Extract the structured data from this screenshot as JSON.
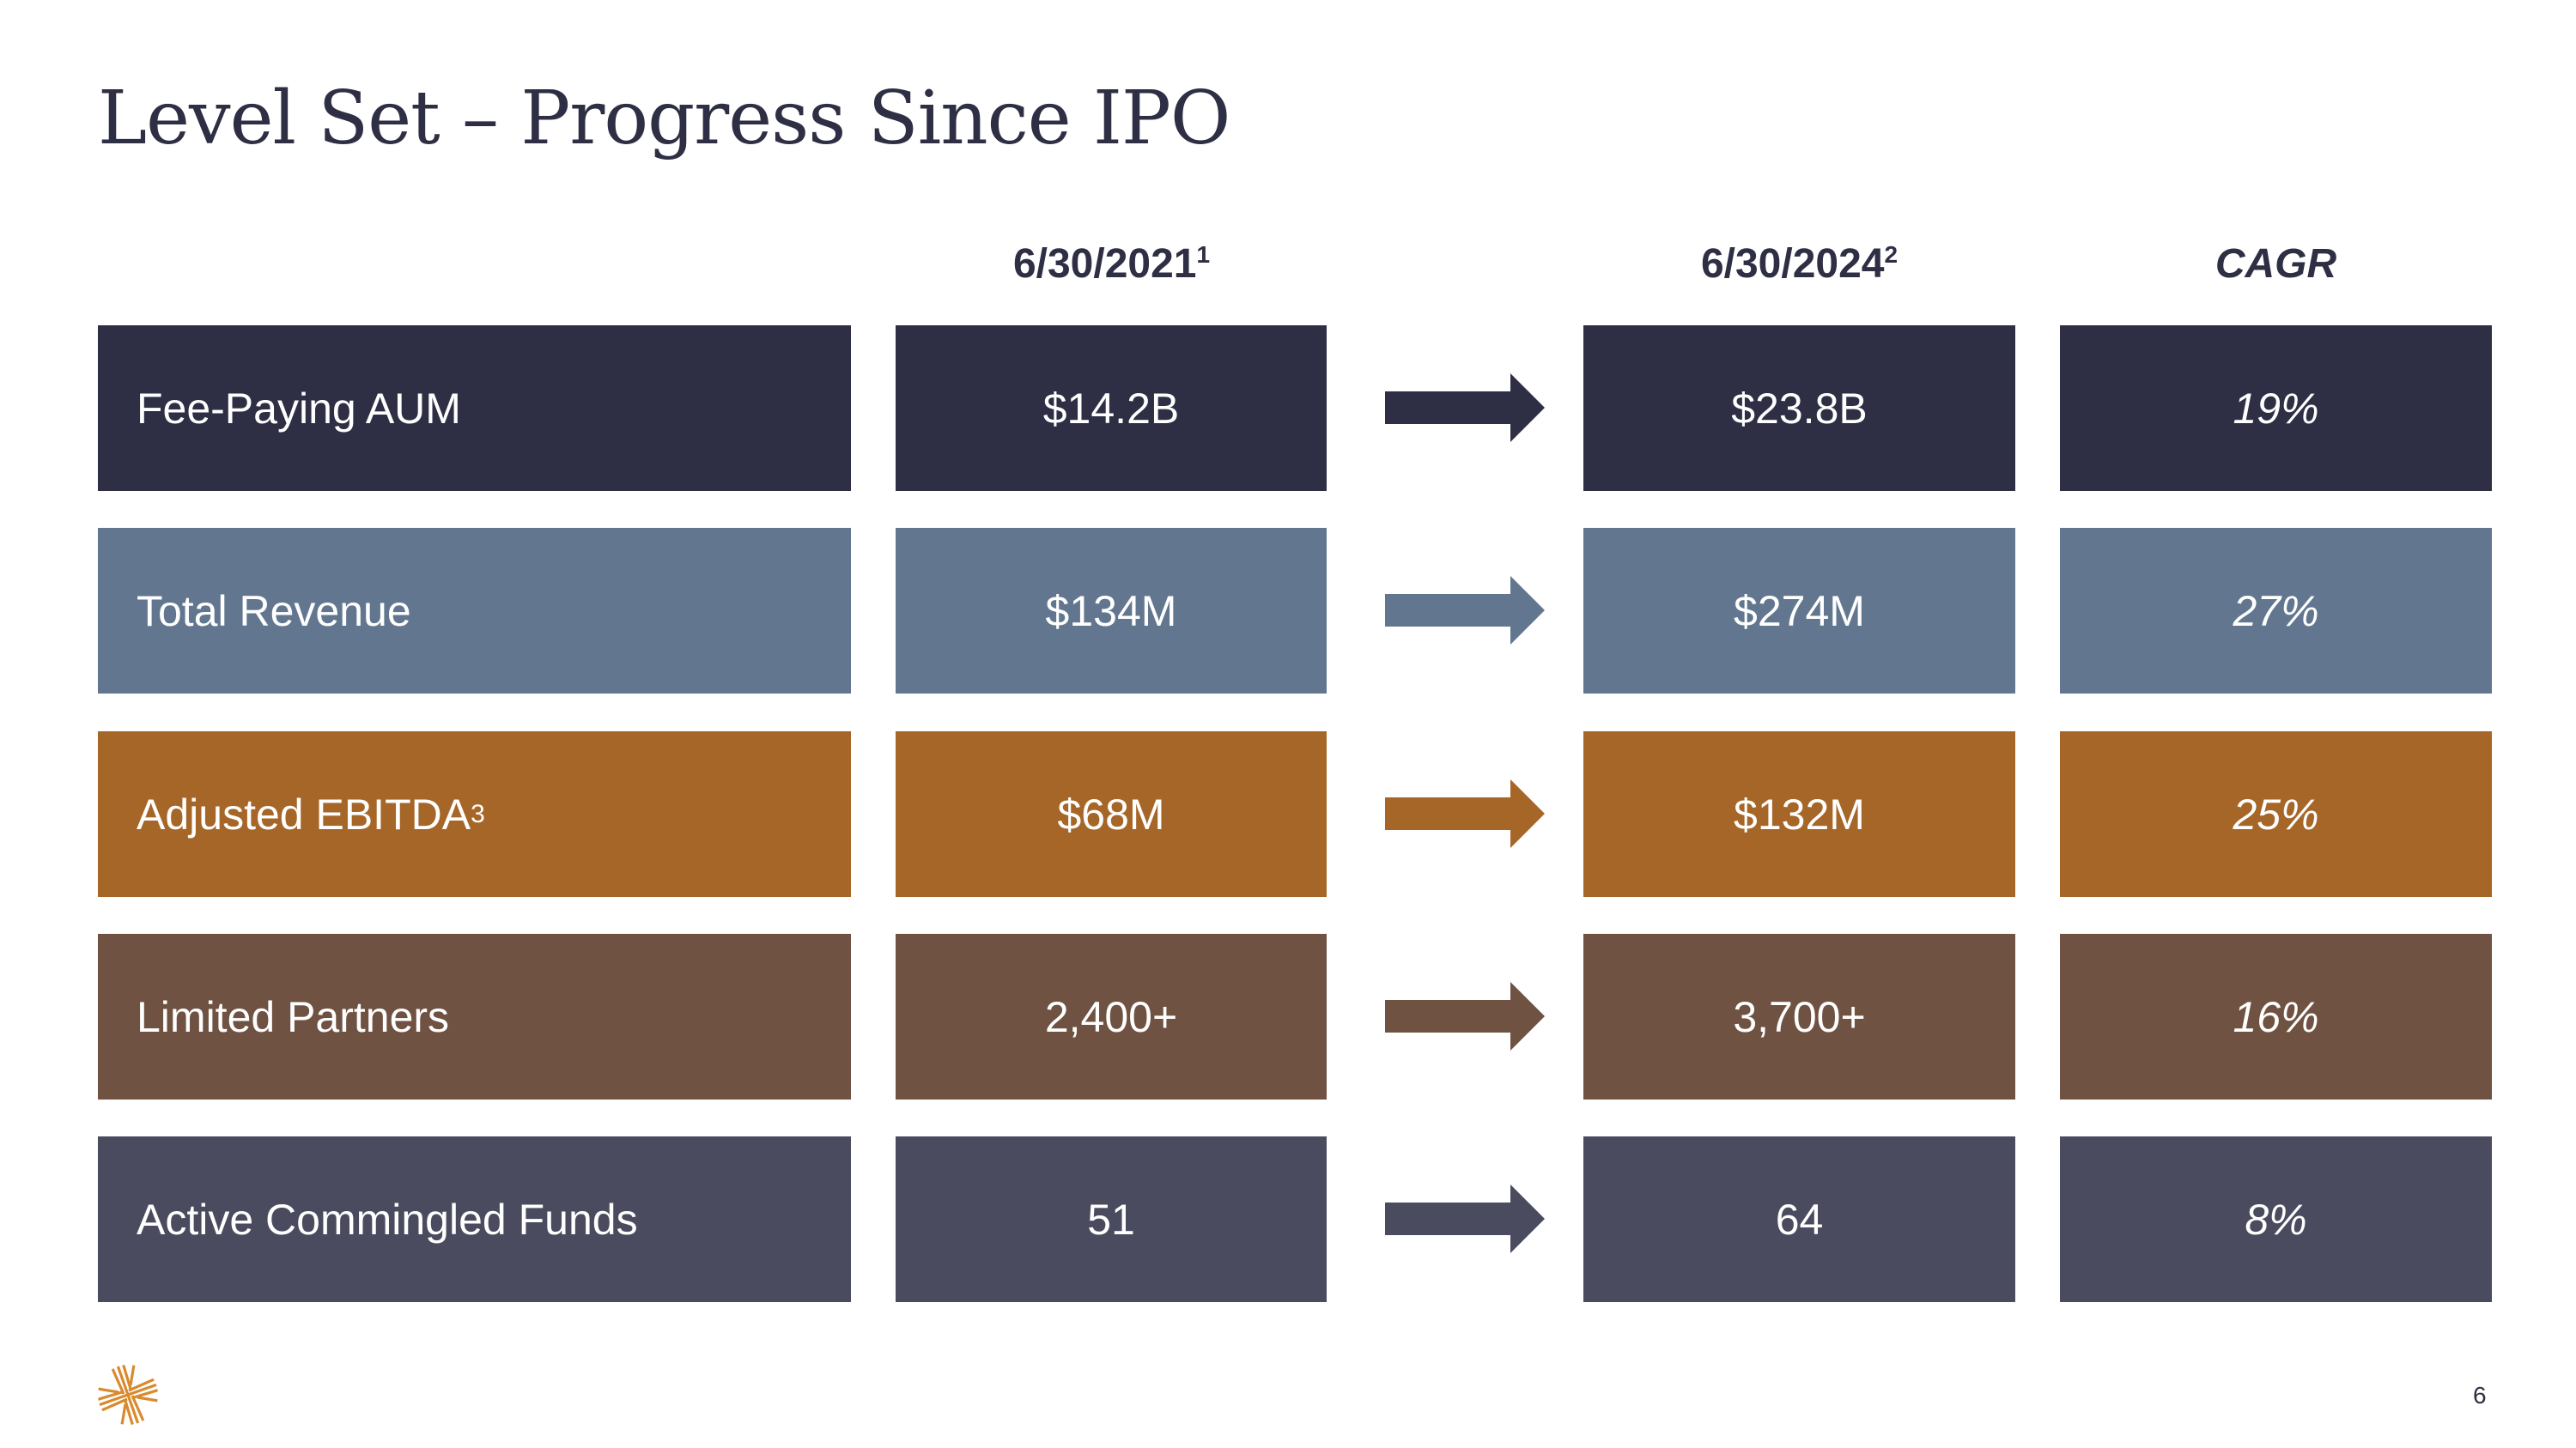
{
  "title": "Level Set – Progress Since IPO",
  "headers": {
    "col1": "6/30/2021",
    "col1_note": "1",
    "col2": "6/30/2024",
    "col2_note": "2",
    "col3": "CAGR"
  },
  "rows": [
    {
      "label": "Fee-Paying AUM",
      "note": "",
      "v1": "$14.2B",
      "v2": "$23.8B",
      "cagr": "19%",
      "color": "#2e2f44"
    },
    {
      "label": "Total Revenue",
      "note": "",
      "v1": "$134M",
      "v2": "$274M",
      "cagr": "27%",
      "color": "#62778f"
    },
    {
      "label": "Adjusted EBITDA",
      "note": "3",
      "v1": "$68M",
      "v2": "$132M",
      "cagr": "25%",
      "color": "#a66628"
    },
    {
      "label": "Limited Partners",
      "note": "",
      "v1": "2,400+",
      "v2": "3,700+",
      "cagr": "16%",
      "color": "#6f5242"
    },
    {
      "label": "Active Commingled Funds",
      "note": "",
      "v1": "51",
      "v2": "64",
      "cagr": "8%",
      "color": "#4a4b5e"
    }
  ],
  "logo_color": "#d98a2e",
  "page_number": "6"
}
